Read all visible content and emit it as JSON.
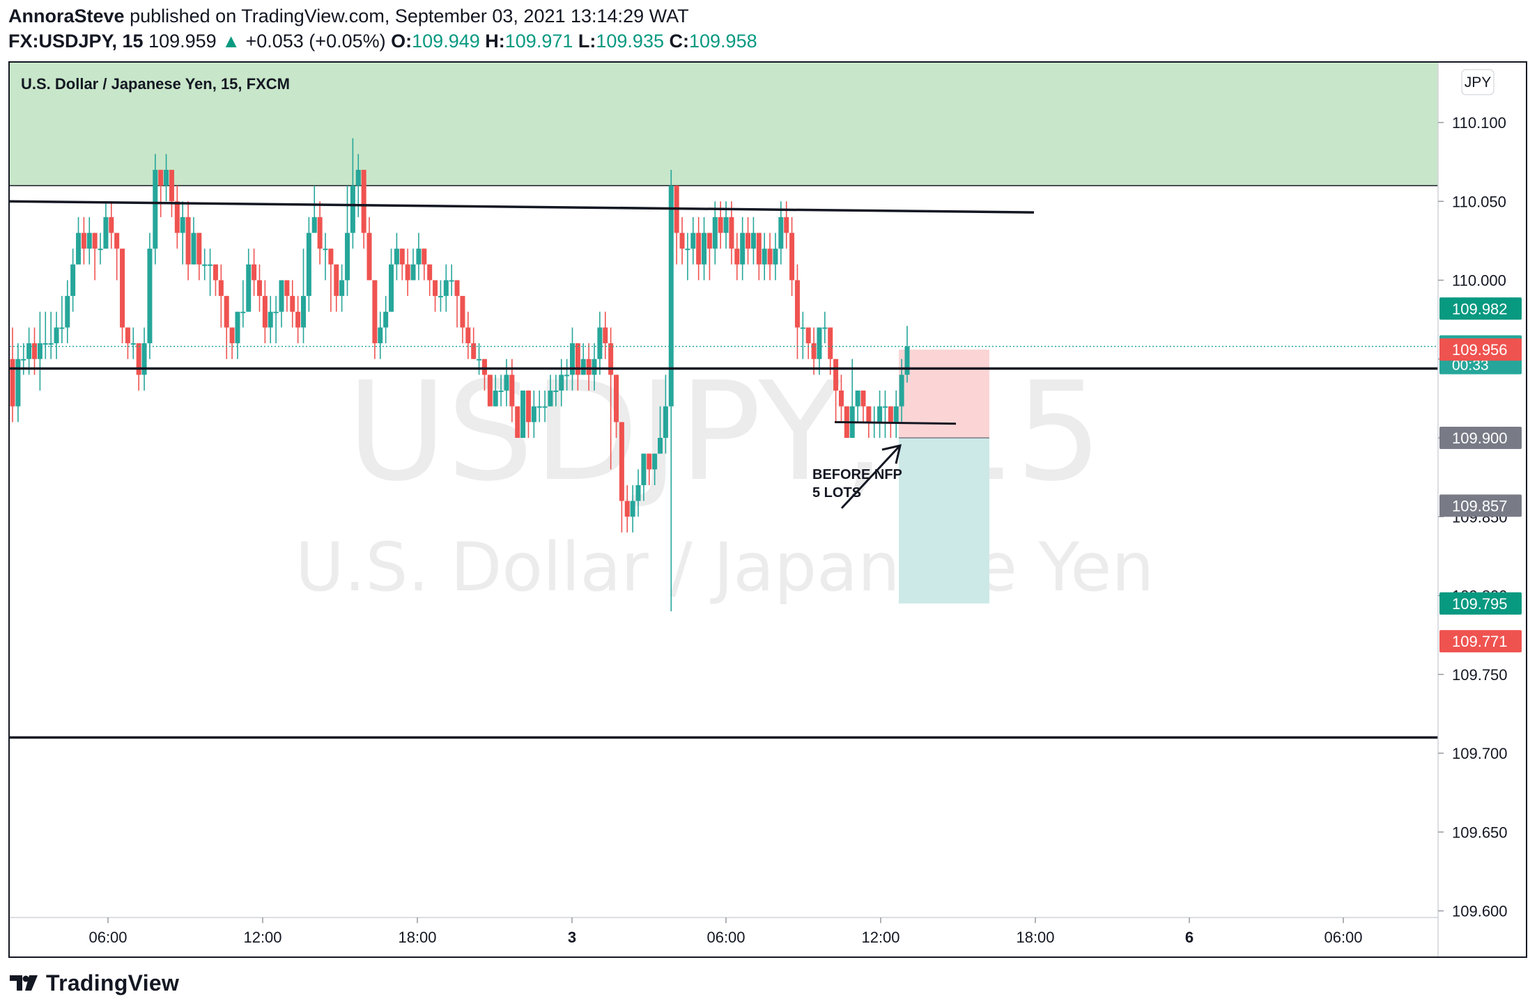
{
  "header": {
    "publisher": "AnnoraSteve",
    "published_text": "published on TradingView.com, September 03, 2021 13:14:29 WAT",
    "symbol": "FX:USDJPY, 15",
    "last": "109.959",
    "change_arrow": "▲",
    "change": "+0.053 (+0.05%)",
    "o_label": "O:",
    "o": "109.949",
    "h_label": "H:",
    "h": "109.971",
    "l_label": "L:",
    "l": "109.935",
    "c_label": "C:",
    "c": "109.958"
  },
  "chart_title": "U.S. Dollar / Japanese Yen, 15, FXCM",
  "watermark": {
    "symbol": "USDJPY, 15",
    "name": "U.S. Dollar / Japanese Yen"
  },
  "currency_badge": "JPY",
  "annotation": {
    "line1": "BEFORE NFP",
    "line2": "5 LOTS"
  },
  "footer": {
    "brand": "TradingView",
    "logo_icon": "tradingview-logo-icon"
  },
  "colors": {
    "up": "#26a69a",
    "down": "#ef5350",
    "zone": "#c8e6c9",
    "stop_zone": "#fbd5d5",
    "target_zone": "#cce9e7",
    "line": "#131722"
  },
  "chart_data": {
    "type": "candlestick",
    "symbol": "USDJPY",
    "interval": "15",
    "y_axis": {
      "ylim": [
        109.58,
        110.18
      ],
      "ticks": [
        "110.100",
        "110.050",
        "110.000",
        "109.950",
        "109.900",
        "109.850",
        "109.800",
        "109.750",
        "109.700",
        "109.650",
        "109.600"
      ]
    },
    "x_axis": {
      "ticks": [
        "06:00",
        "12:00",
        "18:00",
        "3",
        "06:00",
        "12:00",
        "18:00",
        "6",
        "06:00"
      ]
    },
    "price_labels": [
      {
        "value": "109.982",
        "color": "#089981"
      },
      {
        "value": "109.958",
        "sub": "00:33",
        "color": "#26a69a"
      },
      {
        "value": "109.956",
        "color": "#ef5350"
      },
      {
        "value": "109.900",
        "color": "#787b86"
      },
      {
        "value": "109.857",
        "color": "#787b86"
      },
      {
        "value": "109.795",
        "color": "#089981"
      },
      {
        "value": "109.771",
        "color": "#ef5350"
      }
    ],
    "horizontal_lines": [
      110.045,
      109.944,
      109.71
    ],
    "resistance_zone": [
      110.06,
      110.18
    ],
    "position": {
      "entry": 109.9,
      "stop": 109.956,
      "target": 109.795
    },
    "candles": [
      [
        109.95,
        109.92,
        109.97,
        109.91
      ],
      [
        109.92,
        109.95,
        109.96,
        109.91
      ],
      [
        109.95,
        109.95,
        109.96,
        109.94
      ],
      [
        109.95,
        109.96,
        109.97,
        109.94
      ],
      [
        109.96,
        109.95,
        109.97,
        109.94
      ],
      [
        109.95,
        109.96,
        109.98,
        109.93
      ],
      [
        109.96,
        109.96,
        109.98,
        109.95
      ],
      [
        109.96,
        109.96,
        109.98,
        109.95
      ],
      [
        109.96,
        109.97,
        109.98,
        109.95
      ],
      [
        109.97,
        109.97,
        109.99,
        109.96
      ],
      [
        109.97,
        109.99,
        110.0,
        109.96
      ],
      [
        109.99,
        110.01,
        110.02,
        109.98
      ],
      [
        110.01,
        110.03,
        110.04,
        110.01
      ],
      [
        110.03,
        110.02,
        110.04,
        110.01
      ],
      [
        110.02,
        110.03,
        110.04,
        110.01
      ],
      [
        110.03,
        110.02,
        110.03,
        110.0
      ],
      [
        110.02,
        110.02,
        110.03,
        110.01
      ],
      [
        110.02,
        110.04,
        110.05,
        110.02
      ],
      [
        110.04,
        110.03,
        110.05,
        110.02
      ],
      [
        110.03,
        110.02,
        110.03,
        110.0
      ],
      [
        110.02,
        109.97,
        110.02,
        109.96
      ],
      [
        109.97,
        109.96,
        109.97,
        109.95
      ],
      [
        109.96,
        109.96,
        109.97,
        109.95
      ],
      [
        109.96,
        109.94,
        109.96,
        109.93
      ],
      [
        109.94,
        109.96,
        109.97,
        109.93
      ],
      [
        109.96,
        110.02,
        110.03,
        109.95
      ],
      [
        110.02,
        110.07,
        110.08,
        110.01
      ],
      [
        110.07,
        110.06,
        110.07,
        110.04
      ],
      [
        110.06,
        110.07,
        110.08,
        110.05
      ],
      [
        110.07,
        110.05,
        110.07,
        110.04
      ],
      [
        110.05,
        110.03,
        110.06,
        110.02
      ],
      [
        110.03,
        110.04,
        110.05,
        110.01
      ],
      [
        110.04,
        110.01,
        110.05,
        110.0
      ],
      [
        110.01,
        110.03,
        110.04,
        110.01
      ],
      [
        110.03,
        110.01,
        110.03,
        110.0
      ],
      [
        110.01,
        110.01,
        110.02,
        110.0
      ],
      [
        110.01,
        110.01,
        110.02,
        109.99
      ],
      [
        110.01,
        110.0,
        110.01,
        109.99
      ],
      [
        110.0,
        109.99,
        110.01,
        109.97
      ],
      [
        109.99,
        109.97,
        109.99,
        109.95
      ],
      [
        109.97,
        109.96,
        109.97,
        109.95
      ],
      [
        109.96,
        109.98,
        109.98,
        109.95
      ],
      [
        109.98,
        109.98,
        110.0,
        109.97
      ],
      [
        109.98,
        110.01,
        110.02,
        109.98
      ],
      [
        110.01,
        110.0,
        110.02,
        109.99
      ],
      [
        110.0,
        109.99,
        110.01,
        109.98
      ],
      [
        109.99,
        109.97,
        110.0,
        109.96
      ],
      [
        109.97,
        109.98,
        109.99,
        109.96
      ],
      [
        109.98,
        109.98,
        109.99,
        109.96
      ],
      [
        109.98,
        110.0,
        110.0,
        109.97
      ],
      [
        110.0,
        109.99,
        110.0,
        109.98
      ],
      [
        109.99,
        109.98,
        110.0,
        109.97
      ],
      [
        109.98,
        109.97,
        109.99,
        109.96
      ],
      [
        109.97,
        109.99,
        110.02,
        109.96
      ],
      [
        109.99,
        110.03,
        110.04,
        109.98
      ],
      [
        110.03,
        110.04,
        110.06,
        110.03
      ],
      [
        110.04,
        110.02,
        110.05,
        110.01
      ],
      [
        110.02,
        110.02,
        110.03,
        110.0
      ],
      [
        110.02,
        110.01,
        110.02,
        109.98
      ],
      [
        110.01,
        109.99,
        110.01,
        109.98
      ],
      [
        109.99,
        110.0,
        110.01,
        109.98
      ],
      [
        110.0,
        110.03,
        110.06,
        109.99
      ],
      [
        110.03,
        110.06,
        110.09,
        110.02
      ],
      [
        110.06,
        110.07,
        110.08,
        110.04
      ],
      [
        110.07,
        110.03,
        110.07,
        110.02
      ],
      [
        110.03,
        110.0,
        110.04,
        110.0
      ],
      [
        110.0,
        109.96,
        110.0,
        109.95
      ],
      [
        109.96,
        109.97,
        109.98,
        109.95
      ],
      [
        109.97,
        109.98,
        109.99,
        109.96
      ],
      [
        109.98,
        110.01,
        110.02,
        109.98
      ],
      [
        110.01,
        110.02,
        110.03,
        110.0
      ],
      [
        110.02,
        110.01,
        110.02,
        110.0
      ],
      [
        110.01,
        110.0,
        110.02,
        109.99
      ],
      [
        110.0,
        110.01,
        110.02,
        110.0
      ],
      [
        110.01,
        110.02,
        110.03,
        110.0
      ],
      [
        110.02,
        110.01,
        110.02,
        110.0
      ],
      [
        110.01,
        110.0,
        110.01,
        109.99
      ],
      [
        110.0,
        109.99,
        110.0,
        109.98
      ],
      [
        109.99,
        109.99,
        110.0,
        109.98
      ],
      [
        109.99,
        110.0,
        110.01,
        109.98
      ],
      [
        110.0,
        110.0,
        110.01,
        109.99
      ],
      [
        110.0,
        109.99,
        110.0,
        109.97
      ],
      [
        109.99,
        109.97,
        109.99,
        109.96
      ],
      [
        109.97,
        109.96,
        109.98,
        109.95
      ],
      [
        109.96,
        109.95,
        109.97,
        109.95
      ],
      [
        109.95,
        109.95,
        109.96,
        109.94
      ],
      [
        109.95,
        109.94,
        109.95,
        109.93
      ],
      [
        109.94,
        109.92,
        109.94,
        109.92
      ],
      [
        109.92,
        109.93,
        109.94,
        109.92
      ],
      [
        109.93,
        109.93,
        109.94,
        109.92
      ],
      [
        109.93,
        109.94,
        109.95,
        109.92
      ],
      [
        109.94,
        109.92,
        109.95,
        109.91
      ],
      [
        109.92,
        109.9,
        109.92,
        109.9
      ],
      [
        109.9,
        109.93,
        109.93,
        109.9
      ],
      [
        109.93,
        109.91,
        109.93,
        109.9
      ],
      [
        109.91,
        109.92,
        109.93,
        109.9
      ],
      [
        109.92,
        109.92,
        109.93,
        109.91
      ],
      [
        109.92,
        109.92,
        109.93,
        109.91
      ],
      [
        109.92,
        109.93,
        109.94,
        109.92
      ],
      [
        109.93,
        109.93,
        109.94,
        109.92
      ],
      [
        109.93,
        109.94,
        109.95,
        109.92
      ],
      [
        109.94,
        109.94,
        109.95,
        109.93
      ],
      [
        109.94,
        109.96,
        109.97,
        109.93
      ],
      [
        109.96,
        109.94,
        109.96,
        109.93
      ],
      [
        109.94,
        109.95,
        109.96,
        109.94
      ],
      [
        109.95,
        109.94,
        109.96,
        109.93
      ],
      [
        109.94,
        109.95,
        109.96,
        109.93
      ],
      [
        109.95,
        109.97,
        109.98,
        109.94
      ],
      [
        109.97,
        109.96,
        109.98,
        109.95
      ],
      [
        109.96,
        109.94,
        109.97,
        109.88
      ],
      [
        109.94,
        109.91,
        109.94,
        109.9
      ],
      [
        109.91,
        109.86,
        109.91,
        109.84
      ],
      [
        109.86,
        109.85,
        109.87,
        109.84
      ],
      [
        109.85,
        109.86,
        109.87,
        109.84
      ],
      [
        109.86,
        109.87,
        109.88,
        109.85
      ],
      [
        109.87,
        109.89,
        109.89,
        109.86
      ],
      [
        109.89,
        109.88,
        109.89,
        109.87
      ],
      [
        109.88,
        109.89,
        109.89,
        109.87
      ],
      [
        109.89,
        109.9,
        109.92,
        109.89
      ],
      [
        109.9,
        109.92,
        109.94,
        109.89
      ],
      [
        109.92,
        110.06,
        110.07,
        109.79
      ],
      [
        110.06,
        110.03,
        110.06,
        110.01
      ],
      [
        110.03,
        110.02,
        110.04,
        110.01
      ],
      [
        110.02,
        110.02,
        110.03,
        110.0
      ],
      [
        110.02,
        110.03,
        110.04,
        110.01
      ],
      [
        110.03,
        110.01,
        110.04,
        110.0
      ],
      [
        110.01,
        110.03,
        110.04,
        110.0
      ],
      [
        110.03,
        110.02,
        110.03,
        110.0
      ],
      [
        110.02,
        110.04,
        110.05,
        110.01
      ],
      [
        110.04,
        110.03,
        110.05,
        110.02
      ],
      [
        110.03,
        110.04,
        110.05,
        110.02
      ],
      [
        110.04,
        110.02,
        110.05,
        110.01
      ],
      [
        110.02,
        110.01,
        110.03,
        110.0
      ],
      [
        110.01,
        110.03,
        110.04,
        110.0
      ],
      [
        110.03,
        110.02,
        110.04,
        110.01
      ],
      [
        110.02,
        110.03,
        110.04,
        110.01
      ],
      [
        110.03,
        110.01,
        110.03,
        110.0
      ],
      [
        110.01,
        110.02,
        110.03,
        110.0
      ],
      [
        110.02,
        110.01,
        110.03,
        110.0
      ],
      [
        110.01,
        110.02,
        110.03,
        110.0
      ],
      [
        110.02,
        110.04,
        110.05,
        110.01
      ],
      [
        110.04,
        110.03,
        110.05,
        110.02
      ],
      [
        110.03,
        110.0,
        110.04,
        109.99
      ],
      [
        110.0,
        109.97,
        110.01,
        109.95
      ],
      [
        109.97,
        109.97,
        109.98,
        109.95
      ],
      [
        109.97,
        109.96,
        109.97,
        109.95
      ],
      [
        109.96,
        109.95,
        109.97,
        109.94
      ],
      [
        109.95,
        109.97,
        109.97,
        109.94
      ],
      [
        109.97,
        109.97,
        109.98,
        109.96
      ],
      [
        109.97,
        109.95,
        109.97,
        109.94
      ],
      [
        109.95,
        109.93,
        109.95,
        109.91
      ],
      [
        109.93,
        109.92,
        109.94,
        109.91
      ],
      [
        109.92,
        109.9,
        109.92,
        109.9
      ],
      [
        109.9,
        109.92,
        109.95,
        109.9
      ],
      [
        109.92,
        109.93,
        109.93,
        109.91
      ],
      [
        109.93,
        109.92,
        109.93,
        109.91
      ],
      [
        109.92,
        109.91,
        109.92,
        109.9
      ],
      [
        109.91,
        109.91,
        109.92,
        109.9
      ],
      [
        109.91,
        109.92,
        109.93,
        109.9
      ],
      [
        109.92,
        109.92,
        109.93,
        109.9
      ],
      [
        109.92,
        109.91,
        109.92,
        109.9
      ],
      [
        109.91,
        109.92,
        109.93,
        109.9
      ],
      [
        109.92,
        109.94,
        109.95,
        109.91
      ],
      [
        109.94,
        109.958,
        109.971,
        109.935
      ]
    ]
  }
}
